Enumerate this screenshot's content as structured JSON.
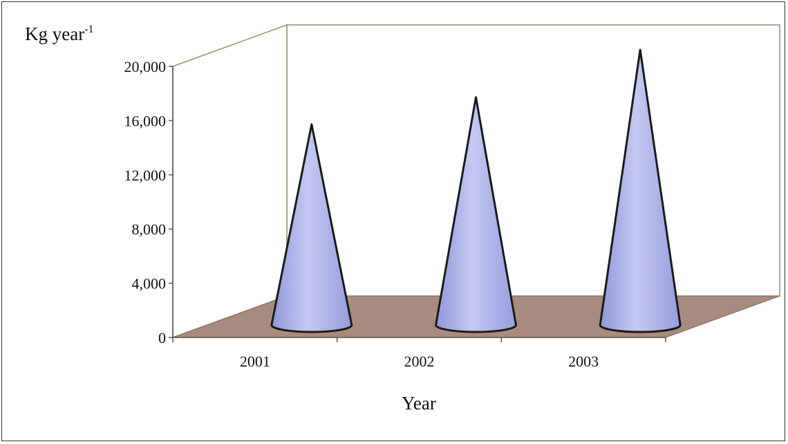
{
  "chart_data": {
    "type": "bar",
    "bar_shape": "cone",
    "projection": "3d",
    "categories": [
      "2001",
      "2002",
      "2003"
    ],
    "values": [
      14500,
      16500,
      20000
    ],
    "y_ticks": [
      "0",
      "4,000",
      "8,000",
      "12,000",
      "16,000",
      "20,000"
    ],
    "y_tick_values": [
      0,
      4000,
      8000,
      12000,
      16000,
      20000
    ],
    "ylim": [
      0,
      20000
    ],
    "ylabel": {
      "base": "Kg year",
      "sup": "-1"
    },
    "xlabel": "Year",
    "grid": false,
    "legend": "none",
    "colors": {
      "cone_fill_light": "#c4c9f2",
      "cone_fill_dark": "#8f97d8",
      "cone_outline": "#1a1a1a",
      "floor": "#a88b7e",
      "wall_edge": "#9a8a6a"
    }
  }
}
